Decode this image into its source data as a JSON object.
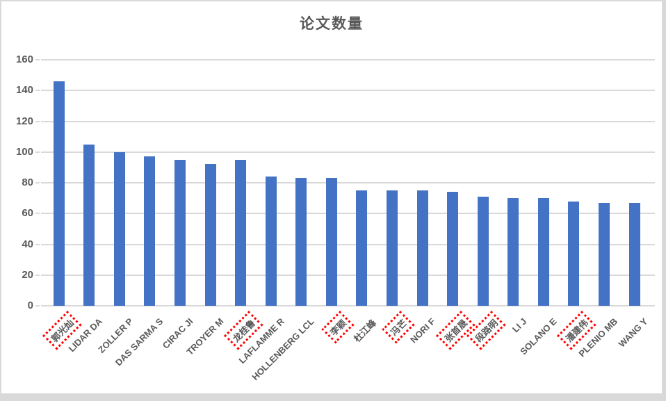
{
  "chart_data": {
    "type": "bar",
    "title": "论文数量",
    "categories": [
      "郭光灿",
      "LIDAR DA",
      "ZOLLER P",
      "DAS SARMA S",
      "CIRAC JI",
      "TROYER M",
      "龙桂鲁",
      "LAFLAMME R",
      "HOLLENBERG LCL",
      "李颖",
      "杜江峰",
      "冯芒",
      "NORI F",
      "张首晟",
      "段路明",
      "LI J",
      "SOLANO E",
      "潘建伟",
      "PLENIO MB",
      "WANG Y"
    ],
    "values": [
      146,
      105,
      100,
      97,
      95,
      92,
      95,
      84,
      83,
      83,
      75,
      75,
      75,
      74,
      71,
      70,
      70,
      68,
      67,
      67
    ],
    "boxed_categories": [
      "郭光灿",
      "龙桂鲁",
      "李颖",
      "冯芒",
      "张首晟",
      "段路明",
      "潘建伟"
    ],
    "xlabel": "",
    "ylabel": "",
    "ylim": [
      0,
      160
    ],
    "y_ticks": [
      0,
      20,
      40,
      60,
      80,
      100,
      120,
      140,
      160
    ],
    "grid": true,
    "legend": "none",
    "x_label_rotation_deg": 45,
    "colors": {
      "bar": "#4472C4",
      "grid": "#D9D9D9",
      "text": "#595959",
      "highlight_box": "#FF0000",
      "frame_border": "#D9D9D9",
      "background": "#FFFFFF"
    }
  }
}
